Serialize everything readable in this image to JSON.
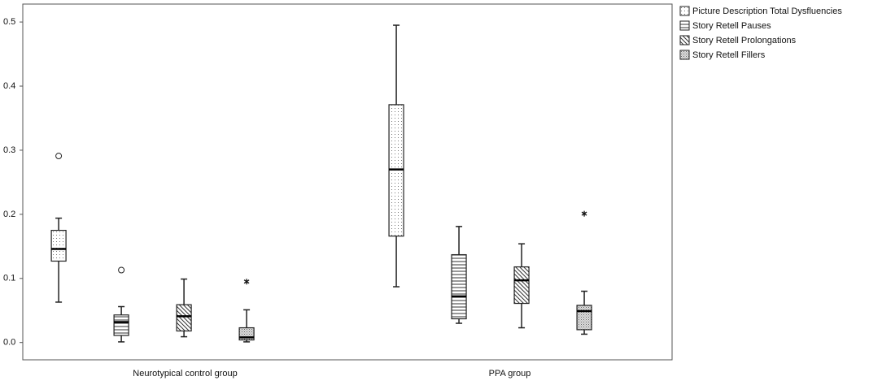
{
  "chart_data": {
    "type": "box",
    "categories": [
      "Neurotypical control group",
      "PPA group"
    ],
    "ylim": [
      -0.027,
      0.528
    ],
    "yticks": [
      {
        "value": 0,
        "label": "0.0"
      },
      0.1,
      0.2,
      0.3,
      0.4,
      0.5
    ],
    "series": [
      {
        "name": "Picture Description Total Dysfluencies",
        "pattern": "dots",
        "boxes": [
          {
            "low": 0.063,
            "q1": 0.127,
            "median": 0.146,
            "q3": 0.175,
            "high": 0.194,
            "outliers": [
              0.291
            ]
          },
          {
            "low": 0.087,
            "q1": 0.166,
            "median": 0.27,
            "q3": 0.371,
            "high": 0.495
          }
        ]
      },
      {
        "name": "Story Retell Pauses",
        "pattern": "hlines",
        "boxes": [
          {
            "low": 0.001,
            "q1": 0.011,
            "median": 0.032,
            "q3": 0.043,
            "high": 0.056,
            "outliers": [
              0.113
            ]
          },
          {
            "low": 0.03,
            "q1": 0.037,
            "median": 0.072,
            "q3": 0.137,
            "high": 0.181
          }
        ]
      },
      {
        "name": "Story Retell Prolongations",
        "pattern": "diag",
        "boxes": [
          {
            "low": 0.009,
            "q1": 0.018,
            "median": 0.041,
            "q3": 0.059,
            "high": 0.099
          },
          {
            "low": 0.023,
            "q1": 0.061,
            "median": 0.097,
            "q3": 0.118,
            "high": 0.154
          }
        ]
      },
      {
        "name": "Story Retell Fillers",
        "pattern": "dense",
        "boxes": [
          {
            "low": 0.001,
            "q1": 0.004,
            "median": 0.008,
            "q3": 0.023,
            "high": 0.051,
            "extremes": [
              0.095
            ]
          },
          {
            "low": 0.013,
            "q1": 0.02,
            "median": 0.049,
            "q3": 0.058,
            "high": 0.08,
            "extremes": [
              0.201
            ]
          }
        ]
      }
    ]
  }
}
